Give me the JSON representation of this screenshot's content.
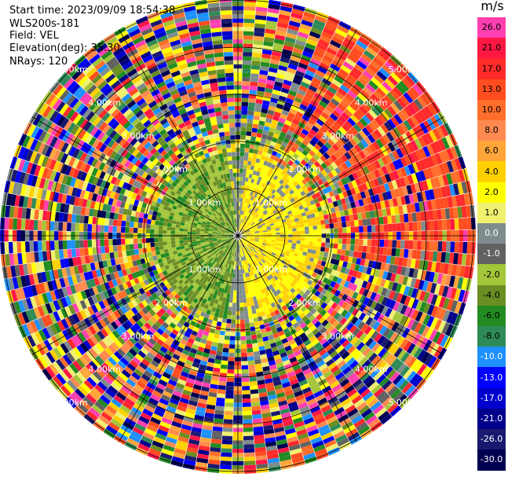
{
  "header": {
    "start_time": "Start time: 2023/09/09 18:54:38",
    "instrument": "WLS200s-181",
    "field": "Field: VEL",
    "elevation": "Elevation(deg): 35.30",
    "nrays": "NRays: 120"
  },
  "colorbar": {
    "unit": "m/s",
    "labels": [
      "26.0",
      "21.0",
      "17.0",
      "13.0",
      "10.0",
      "8.0",
      "6.0",
      "4.0",
      "2.0",
      "1.0",
      "0.0",
      "-1.0",
      "-2.0",
      "-4.0",
      "-6.0",
      "-8.0",
      "-10.0",
      "-13.0",
      "-17.0",
      "-21.0",
      "-26.0",
      "-30.0"
    ],
    "colors": [
      "#ff3fb0",
      "#ff1744",
      "#ff2a2a",
      "#ff4d1f",
      "#ff6e2a",
      "#ff8a50",
      "#ffa53a",
      "#ffd000",
      "#ffff00",
      "#f0f070",
      "#7f8c8d",
      "#616161",
      "#a4c639",
      "#6b8e23",
      "#228b22",
      "#2e8b57",
      "#1e90ff",
      "#0000ff",
      "#0000cd",
      "#00008b",
      "#191970",
      "#000050"
    ]
  },
  "ppi": {
    "ring_labels": [
      "1.00km",
      "2.00km",
      "3.00km",
      "4.00km",
      "5.00km"
    ]
  }
}
